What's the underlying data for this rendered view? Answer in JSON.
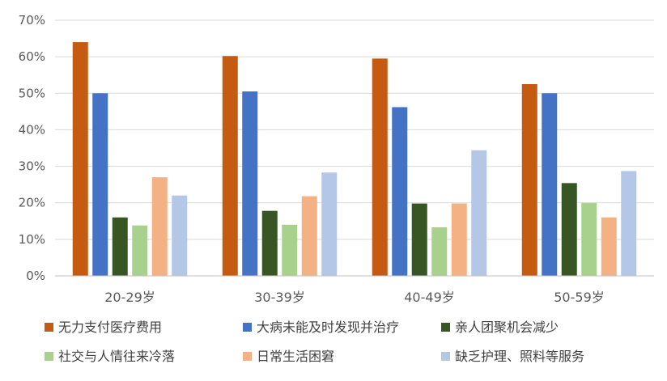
{
  "chart_data": {
    "type": "bar",
    "categories": [
      "20-29岁",
      "30-39岁",
      "40-49岁",
      "50-59岁"
    ],
    "series": [
      {
        "name": "无力支付医疗费用",
        "color": "#C55A11",
        "values": [
          64,
          60.2,
          59.5,
          52.5
        ]
      },
      {
        "name": "大病未能及时发现并治疗",
        "color": "#4472C4",
        "values": [
          50,
          50.5,
          46.2,
          50
        ]
      },
      {
        "name": "亲人团聚机会减少",
        "color": "#375623",
        "values": [
          16,
          17.8,
          19.8,
          25.4
        ]
      },
      {
        "name": "社交与人情往来冷落",
        "color": "#A9D18E",
        "values": [
          13.8,
          14,
          13.3,
          20
        ]
      },
      {
        "name": "日常生活困窘",
        "color": "#F4B183",
        "values": [
          27,
          21.8,
          19.8,
          16
        ]
      },
      {
        "name": "缺乏护理、照料等服务",
        "color": "#B4C7E7",
        "values": [
          22,
          28.3,
          34.4,
          28.7
        ]
      }
    ],
    "ylim": [
      0,
      70
    ],
    "yticks": [
      "0%",
      "10%",
      "20%",
      "30%",
      "40%",
      "50%",
      "60%",
      "70%"
    ],
    "grid": true,
    "legend_position": "bottom"
  }
}
